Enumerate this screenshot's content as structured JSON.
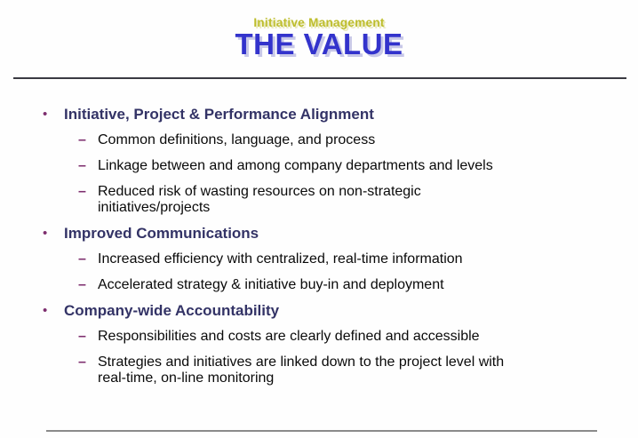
{
  "slide": {
    "supertitle": "Initiative Management",
    "title": "THE VALUE",
    "bullet_glyph": "•",
    "dash_glyph": "–",
    "colors": {
      "supertitle": "#bdbd2b",
      "title": "#3333cc",
      "title_shadow": "#c8c8e8",
      "heading": "#333366",
      "marker": "#7d2e6e",
      "body": "#0a0a0a",
      "top_rule": "#3a3a42",
      "bottom_rule": "#8a8a8a"
    },
    "sections": [
      {
        "heading": "Initiative, Project & Performance Alignment",
        "items": [
          "Common definitions, language, and process",
          "Linkage between and among company departments and levels",
          "Reduced risk of wasting resources on non-strategic\ninitiatives/projects"
        ]
      },
      {
        "heading": "Improved Communications",
        "items": [
          "Increased efficiency with centralized, real-time information",
          "Accelerated strategy & initiative buy-in and deployment"
        ]
      },
      {
        "heading": "Company-wide Accountability",
        "items": [
          "Responsibilities and costs are clearly defined and accessible",
          "Strategies and initiatives are linked down to the project level with\nreal-time, on-line monitoring"
        ]
      }
    ]
  }
}
